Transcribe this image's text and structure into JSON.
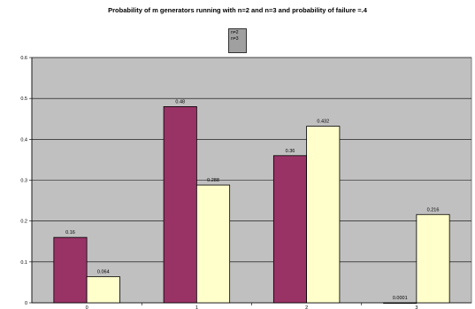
{
  "chart_data": {
    "type": "bar",
    "title": "Probability of m generators running with n=2 and n=3 and probability of failure =.4",
    "categories": [
      "0",
      "1",
      "2",
      "3"
    ],
    "series": [
      {
        "name": "n=2",
        "color": "#993366",
        "values": [
          0.16,
          0.48,
          0.36,
          0.0001
        ],
        "labels": [
          "0.16",
          "0.48",
          "0.36",
          "0.0001"
        ]
      },
      {
        "name": "n=3",
        "color": "#ffffcc",
        "values": [
          0.064,
          0.288,
          0.432,
          0.216
        ],
        "labels": [
          "0.064",
          "0.288",
          "0.432",
          "0.216"
        ]
      }
    ],
    "ylim": [
      0,
      0.6
    ],
    "yticks": [
      "0",
      "0.1",
      "0.2",
      "0.3",
      "0.4",
      "0.5",
      "0.6"
    ],
    "grid": true,
    "plot_background": "#c0c0c0",
    "legend": "top-center"
  }
}
